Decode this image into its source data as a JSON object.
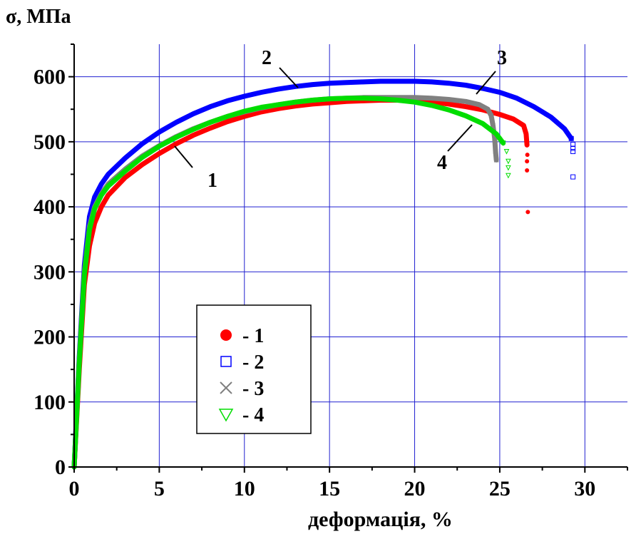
{
  "chart_data": {
    "type": "scatter",
    "ylabel": "σ, МПа",
    "xlabel": "деформація, %",
    "xlim": [
      0,
      32.5
    ],
    "ylim": [
      0,
      650
    ],
    "x_ticks": [
      0,
      5,
      10,
      15,
      20,
      25,
      30
    ],
    "y_ticks": [
      0,
      100,
      200,
      300,
      400,
      500,
      600
    ],
    "grid": true,
    "legend_position": "center-left",
    "series": [
      {
        "name": "1",
        "label": "- 1",
        "curve_label": "1",
        "color": "#ff0000",
        "marker": "circle",
        "points": [
          [
            0,
            0
          ],
          [
            0.3,
            150
          ],
          [
            0.6,
            280
          ],
          [
            0.9,
            340
          ],
          [
            1.2,
            375
          ],
          [
            1.6,
            400
          ],
          [
            2,
            418
          ],
          [
            3,
            445
          ],
          [
            4,
            465
          ],
          [
            5,
            482
          ],
          [
            6,
            497
          ],
          [
            7,
            510
          ],
          [
            8,
            521
          ],
          [
            9,
            531
          ],
          [
            10,
            539
          ],
          [
            11,
            546
          ],
          [
            12,
            551
          ],
          [
            13,
            555
          ],
          [
            14,
            558
          ],
          [
            15,
            560
          ],
          [
            16,
            562
          ],
          [
            17,
            563
          ],
          [
            18,
            564
          ],
          [
            19,
            564
          ],
          [
            20,
            563
          ],
          [
            21,
            561
          ],
          [
            22,
            558
          ],
          [
            23,
            554
          ],
          [
            24,
            549
          ],
          [
            25,
            542
          ],
          [
            25.8,
            535
          ],
          [
            26.4,
            525
          ],
          [
            26.55,
            512
          ],
          [
            26.6,
            495
          ],
          [
            26.62,
            480
          ],
          [
            26.6,
            470
          ],
          [
            26.6,
            456
          ],
          [
            26.65,
            392
          ]
        ]
      },
      {
        "name": "2",
        "label": "- 2",
        "curve_label": "2",
        "color": "#0000ff",
        "marker": "square",
        "points": [
          [
            0,
            0
          ],
          [
            0.3,
            170
          ],
          [
            0.6,
            310
          ],
          [
            0.9,
            385
          ],
          [
            1.2,
            415
          ],
          [
            1.6,
            435
          ],
          [
            2,
            450
          ],
          [
            3,
            475
          ],
          [
            4,
            497
          ],
          [
            5,
            515
          ],
          [
            6,
            530
          ],
          [
            7,
            543
          ],
          [
            8,
            554
          ],
          [
            9,
            563
          ],
          [
            10,
            570
          ],
          [
            11,
            576
          ],
          [
            12,
            581
          ],
          [
            13,
            585
          ],
          [
            14,
            588
          ],
          [
            15,
            590
          ],
          [
            16,
            591
          ],
          [
            17,
            592
          ],
          [
            18,
            593
          ],
          [
            19,
            593
          ],
          [
            20,
            593
          ],
          [
            21,
            592
          ],
          [
            22,
            590
          ],
          [
            23,
            587
          ],
          [
            24,
            582
          ],
          [
            25,
            576
          ],
          [
            26,
            567
          ],
          [
            27,
            554
          ],
          [
            28,
            538
          ],
          [
            28.8,
            520
          ],
          [
            29.2,
            505
          ],
          [
            29.3,
            496
          ],
          [
            29.3,
            490
          ],
          [
            29.3,
            485
          ],
          [
            29.3,
            446
          ]
        ]
      },
      {
        "name": "3",
        "label": "- 3",
        "curve_label": "3",
        "color": "#808080",
        "marker": "cross",
        "points": [
          [
            0,
            0
          ],
          [
            0.3,
            165
          ],
          [
            0.6,
            300
          ],
          [
            0.9,
            370
          ],
          [
            1.2,
            400
          ],
          [
            1.6,
            420
          ],
          [
            2,
            435
          ],
          [
            3,
            458
          ],
          [
            4,
            478
          ],
          [
            5,
            494
          ],
          [
            6,
            508
          ],
          [
            7,
            520
          ],
          [
            8,
            530
          ],
          [
            9,
            539
          ],
          [
            10,
            546
          ],
          [
            11,
            552
          ],
          [
            12,
            557
          ],
          [
            13,
            561
          ],
          [
            14,
            564
          ],
          [
            15,
            566
          ],
          [
            16,
            567
          ],
          [
            17,
            568
          ],
          [
            18,
            568
          ],
          [
            19,
            568
          ],
          [
            20,
            568
          ],
          [
            21,
            567
          ],
          [
            22,
            565
          ],
          [
            23,
            562
          ],
          [
            23.8,
            557
          ],
          [
            24.3,
            550
          ],
          [
            24.5,
            540
          ],
          [
            24.6,
            525
          ],
          [
            24.7,
            505
          ],
          [
            24.75,
            485
          ],
          [
            24.8,
            472
          ]
        ]
      },
      {
        "name": "4",
        "label": "- 4",
        "curve_label": "4",
        "color": "#00dd00",
        "marker": "triangle-down",
        "points": [
          [
            0,
            0
          ],
          [
            0.3,
            160
          ],
          [
            0.6,
            295
          ],
          [
            0.9,
            365
          ],
          [
            1.2,
            397
          ],
          [
            1.6,
            418
          ],
          [
            2,
            432
          ],
          [
            3,
            455
          ],
          [
            4,
            476
          ],
          [
            5,
            493
          ],
          [
            6,
            507
          ],
          [
            7,
            519
          ],
          [
            8,
            530
          ],
          [
            9,
            539
          ],
          [
            10,
            547
          ],
          [
            11,
            553
          ],
          [
            12,
            557
          ],
          [
            13,
            561
          ],
          [
            14,
            564
          ],
          [
            15,
            566
          ],
          [
            16,
            567
          ],
          [
            17,
            567
          ],
          [
            18,
            566
          ],
          [
            19,
            564
          ],
          [
            20,
            561
          ],
          [
            21,
            556
          ],
          [
            22,
            549
          ],
          [
            23,
            540
          ],
          [
            24,
            528
          ],
          [
            24.8,
            512
          ],
          [
            25.2,
            498
          ],
          [
            25.4,
            485
          ],
          [
            25.5,
            470
          ],
          [
            25.5,
            460
          ],
          [
            25.5,
            448
          ]
        ]
      }
    ]
  }
}
